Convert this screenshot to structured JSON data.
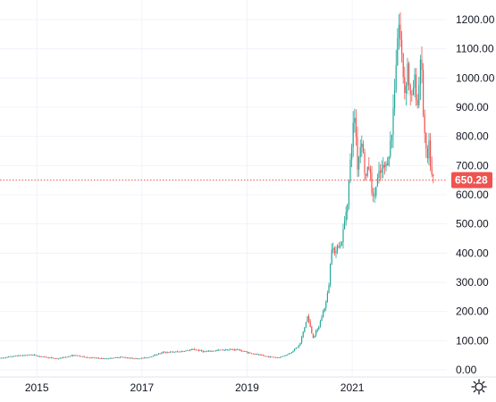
{
  "chart_data": {
    "type": "candlestick",
    "title": "",
    "xlabel": "",
    "ylabel": "",
    "ylim": [
      0,
      1270
    ],
    "xlim": [
      2014.3,
      2022.8
    ],
    "grid": true,
    "y_ticks": [
      "0.00",
      "100.00",
      "200.00",
      "300.00",
      "400.00",
      "500.00",
      "600.00",
      "700.00",
      "800.00",
      "900.00",
      "1000.00",
      "1100.00",
      "1200.00"
    ],
    "y_tick_values": [
      0,
      100,
      200,
      300,
      400,
      500,
      600,
      700,
      800,
      900,
      1000,
      1100,
      1200
    ],
    "x_ticks": [
      "2015",
      "2017",
      "2019",
      "2021"
    ],
    "x_tick_values": [
      2015,
      2017,
      2019,
      2021
    ],
    "last_price": 650.28,
    "last_price_label": "650.28",
    "colors": {
      "up": "#26a69a",
      "down": "#ef5350",
      "price_line": "#ef5350",
      "grid": "#f0f3fa",
      "text": "#131722"
    },
    "price_path": [
      [
        2014.3,
        40
      ],
      [
        2014.6,
        48
      ],
      [
        2014.9,
        52
      ],
      [
        2015.1,
        45
      ],
      [
        2015.4,
        38
      ],
      [
        2015.7,
        50
      ],
      [
        2016.0,
        42
      ],
      [
        2016.3,
        38
      ],
      [
        2016.6,
        44
      ],
      [
        2016.9,
        38
      ],
      [
        2017.1,
        42
      ],
      [
        2017.4,
        60
      ],
      [
        2017.7,
        62
      ],
      [
        2018.0,
        70
      ],
      [
        2018.2,
        62
      ],
      [
        2018.5,
        68
      ],
      [
        2018.8,
        70
      ],
      [
        2019.0,
        60
      ],
      [
        2019.2,
        52
      ],
      [
        2019.4,
        45
      ],
      [
        2019.6,
        42
      ],
      [
        2019.8,
        55
      ],
      [
        2020.0,
        85
      ],
      [
        2020.1,
        150
      ],
      [
        2020.15,
        185
      ],
      [
        2020.25,
        110
      ],
      [
        2020.35,
        140
      ],
      [
        2020.5,
        230
      ],
      [
        2020.55,
        280
      ],
      [
        2020.62,
        450
      ],
      [
        2020.68,
        380
      ],
      [
        2020.72,
        440
      ],
      [
        2020.78,
        420
      ],
      [
        2020.85,
        500
      ],
      [
        2020.92,
        600
      ],
      [
        2021.0,
        800
      ],
      [
        2021.05,
        880
      ],
      [
        2021.1,
        700
      ],
      [
        2021.18,
        800
      ],
      [
        2021.25,
        650
      ],
      [
        2021.32,
        700
      ],
      [
        2021.4,
        580
      ],
      [
        2021.48,
        650
      ],
      [
        2021.55,
        680
      ],
      [
        2021.65,
        700
      ],
      [
        2021.75,
        800
      ],
      [
        2021.83,
        1050
      ],
      [
        2021.88,
        1200
      ],
      [
        2021.93,
        1100
      ],
      [
        2022.0,
        950
      ],
      [
        2022.05,
        1050
      ],
      [
        2022.12,
        900
      ],
      [
        2022.18,
        1000
      ],
      [
        2022.25,
        900
      ],
      [
        2022.3,
        1100
      ],
      [
        2022.36,
        850
      ],
      [
        2022.42,
        700
      ],
      [
        2022.46,
        760
      ],
      [
        2022.52,
        650
      ],
      [
        2022.56,
        650.28
      ]
    ]
  },
  "settings_icon": "gear-icon"
}
